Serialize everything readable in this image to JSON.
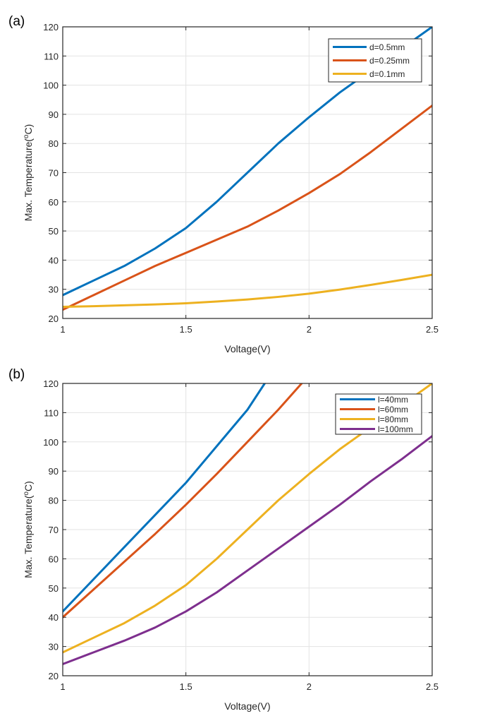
{
  "chart_data": [
    {
      "type": "line",
      "panel_label": "(a)",
      "title": "",
      "xlabel": "Voltage(V)",
      "ylabel": "Max. Temperature(°C)",
      "ylabel_parts": {
        "prefix": "Max. Temperature(",
        "superscript": "o",
        "suffix": "C)"
      },
      "xlim": [
        1,
        2.5
      ],
      "ylim": [
        20,
        120
      ],
      "xticks": [
        1,
        1.5,
        2,
        2.5
      ],
      "xtick_labels": [
        "1",
        "1.5",
        "2",
        "2.5"
      ],
      "yticks": [
        20,
        30,
        40,
        50,
        60,
        70,
        80,
        90,
        100,
        110,
        120
      ],
      "ytick_labels": [
        "20",
        "30",
        "40",
        "50",
        "60",
        "70",
        "80",
        "90",
        "100",
        "110",
        "120"
      ],
      "grid": true,
      "legend_position": "top-right",
      "series": [
        {
          "name": "d=0.5mm",
          "color": "#0072BD",
          "x": [
            1,
            1.125,
            1.25,
            1.375,
            1.5,
            1.625,
            1.75,
            1.875,
            2,
            2.125,
            2.25,
            2.375,
            2.5
          ],
          "y": [
            28,
            33,
            38,
            44,
            51,
            60,
            70,
            80,
            89,
            97.5,
            105,
            112.5,
            120
          ]
        },
        {
          "name": "d=0.25mm",
          "color": "#D95319",
          "x": [
            1,
            1.125,
            1.25,
            1.375,
            1.5,
            1.625,
            1.75,
            1.875,
            2,
            2.125,
            2.25,
            2.375,
            2.5
          ],
          "y": [
            23,
            28,
            33,
            38,
            42.5,
            47,
            51.5,
            57,
            63,
            69.5,
            77,
            85,
            93
          ]
        },
        {
          "name": "d=0.1mm",
          "color": "#EDB120",
          "x": [
            1,
            1.125,
            1.25,
            1.375,
            1.5,
            1.625,
            1.75,
            1.875,
            2,
            2.125,
            2.25,
            2.375,
            2.5
          ],
          "y": [
            24,
            24.2,
            24.5,
            24.8,
            25.2,
            25.8,
            26.5,
            27.4,
            28.5,
            29.9,
            31.5,
            33.2,
            35
          ]
        }
      ]
    },
    {
      "type": "line",
      "panel_label": "(b)",
      "title": "",
      "xlabel": "Voltage(V)",
      "ylabel": "Max. Temperature(°C)",
      "ylabel_parts": {
        "prefix": "Max. Temperature(",
        "superscript": "o",
        "suffix": "C)"
      },
      "xlim": [
        1,
        2.5
      ],
      "ylim": [
        20,
        120
      ],
      "xticks": [
        1,
        1.5,
        2,
        2.5
      ],
      "xtick_labels": [
        "1",
        "1.5",
        "2",
        "2.5"
      ],
      "yticks": [
        20,
        30,
        40,
        50,
        60,
        70,
        80,
        90,
        100,
        110,
        120
      ],
      "ytick_labels": [
        "20",
        "30",
        "40",
        "50",
        "60",
        "70",
        "80",
        "90",
        "100",
        "110",
        "120"
      ],
      "grid": true,
      "legend_position": "top-right",
      "series": [
        {
          "name": "l=40mm",
          "color": "#0072BD",
          "x": [
            1,
            1.125,
            1.25,
            1.375,
            1.5,
            1.625,
            1.75,
            1.82
          ],
          "y": [
            42,
            53,
            64,
            75,
            86,
            98.5,
            111,
            120
          ]
        },
        {
          "name": "l=60mm",
          "color": "#D95319",
          "x": [
            1,
            1.125,
            1.25,
            1.375,
            1.5,
            1.625,
            1.75,
            1.875,
            1.97
          ],
          "y": [
            40,
            49.5,
            59,
            68.5,
            78.5,
            89,
            100,
            111,
            120
          ]
        },
        {
          "name": "l=80mm",
          "color": "#EDB120",
          "x": [
            1,
            1.125,
            1.25,
            1.375,
            1.5,
            1.625,
            1.75,
            1.875,
            2,
            2.125,
            2.25,
            2.375,
            2.5
          ],
          "y": [
            28,
            33,
            38,
            44,
            51,
            60,
            70,
            80,
            89,
            97.5,
            105,
            112.5,
            120
          ]
        },
        {
          "name": "l=100mm",
          "color": "#7E2F8E",
          "x": [
            1,
            1.125,
            1.25,
            1.375,
            1.5,
            1.625,
            1.75,
            1.875,
            2,
            2.125,
            2.25,
            2.375,
            2.5
          ],
          "y": [
            24,
            28,
            32,
            36.5,
            42,
            48.5,
            56,
            63.5,
            71,
            78.5,
            86.5,
            94,
            102
          ]
        }
      ]
    }
  ]
}
